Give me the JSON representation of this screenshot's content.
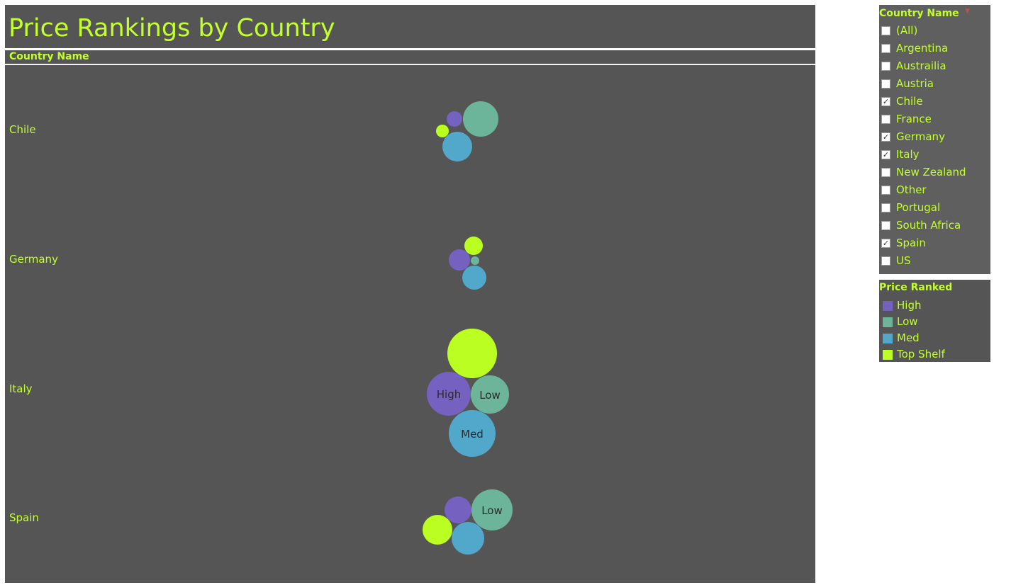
{
  "title": "Price Rankings by Country",
  "header": {
    "column_label": "Country Name"
  },
  "rows": [
    {
      "country": "Chile"
    },
    {
      "country": "Germany"
    },
    {
      "country": "Italy"
    },
    {
      "country": "Spain"
    }
  ],
  "filter": {
    "title": "Country Name",
    "items": [
      {
        "label": "(All)",
        "checked": false
      },
      {
        "label": "Argentina",
        "checked": false
      },
      {
        "label": "Austrailia",
        "checked": false
      },
      {
        "label": "Austria",
        "checked": false
      },
      {
        "label": "Chile",
        "checked": true
      },
      {
        "label": "France",
        "checked": false
      },
      {
        "label": "Germany",
        "checked": true
      },
      {
        "label": "Italy",
        "checked": true
      },
      {
        "label": "New Zealand",
        "checked": false
      },
      {
        "label": "Other",
        "checked": false
      },
      {
        "label": "Portugal",
        "checked": false
      },
      {
        "label": "South Africa",
        "checked": false
      },
      {
        "label": "Spain",
        "checked": true
      },
      {
        "label": "US",
        "checked": false
      }
    ]
  },
  "legend": {
    "title": "Price Ranked",
    "items": [
      {
        "label": "High",
        "color": "#7561c0"
      },
      {
        "label": "Low",
        "color": "#6db59a"
      },
      {
        "label": "Med",
        "color": "#52a8cb"
      },
      {
        "label": "Top Shelf",
        "color": "#bbff22"
      }
    ]
  },
  "chart_data": {
    "type": "bubble",
    "title": "Price Rankings by Country",
    "categories": [
      "Chile",
      "Germany",
      "Italy",
      "Spain"
    ],
    "series": [
      {
        "name": "High",
        "color": "#7561c0",
        "values": [
          11,
          15,
          31,
          19
        ]
      },
      {
        "name": "Low",
        "color": "#6db59a",
        "values": [
          25,
          6,
          27,
          29
        ]
      },
      {
        "name": "Med",
        "color": "#52a8cb",
        "values": [
          21,
          17,
          33,
          23
        ]
      },
      {
        "name": "Top Shelf",
        "color": "#bbff22",
        "values": [
          9,
          13,
          35,
          21
        ]
      }
    ],
    "labels": {
      "Italy": [
        "High",
        "Low",
        "Med"
      ],
      "Spain": [
        "Low"
      ]
    },
    "legend_position": "right",
    "grid": false
  }
}
